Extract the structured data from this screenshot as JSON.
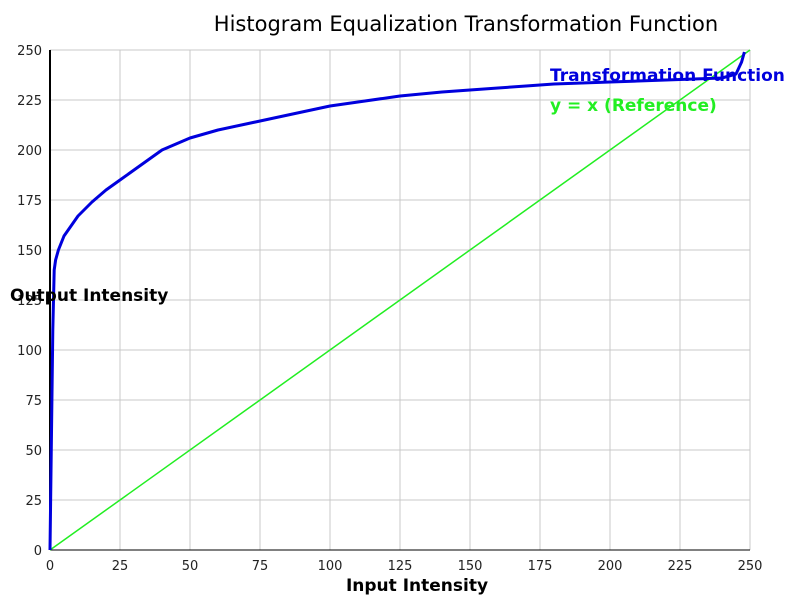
{
  "chart_data": {
    "type": "line",
    "title": "Histogram Equalization Transformation Function",
    "xlabel": "Input Intensity",
    "ylabel": "Output Intensity",
    "xlim": [
      0,
      250
    ],
    "ylim": [
      0,
      250
    ],
    "xticks": [
      0,
      25,
      50,
      75,
      100,
      125,
      150,
      175,
      200,
      225,
      250
    ],
    "yticks": [
      0,
      25,
      50,
      75,
      100,
      125,
      150,
      175,
      200,
      225,
      250
    ],
    "grid": true,
    "legend_position": "top-right",
    "series": [
      {
        "name": "Transformation Function",
        "color": "#0000dd",
        "x": [
          0,
          1,
          1.5,
          2,
          3,
          5,
          8,
          10,
          15,
          20,
          25,
          30,
          35,
          40,
          45,
          50,
          55,
          60,
          70,
          80,
          90,
          100,
          110,
          125,
          140,
          150,
          160,
          170,
          180,
          190,
          200,
          210,
          220,
          230,
          240,
          245,
          247,
          248
        ],
        "y": [
          0,
          110,
          140,
          145,
          150,
          157,
          163,
          167,
          174,
          180,
          185,
          190,
          195,
          200,
          203,
          206,
          208,
          210,
          213,
          216,
          219,
          222,
          224,
          227,
          229,
          230,
          231,
          232,
          233,
          233.5,
          234,
          234.5,
          235,
          235.5,
          236,
          238,
          244,
          249
        ]
      },
      {
        "name": "y = x (Reference)",
        "color": "#22ee22",
        "x": [
          0,
          250
        ],
        "y": [
          0,
          250
        ]
      }
    ]
  }
}
